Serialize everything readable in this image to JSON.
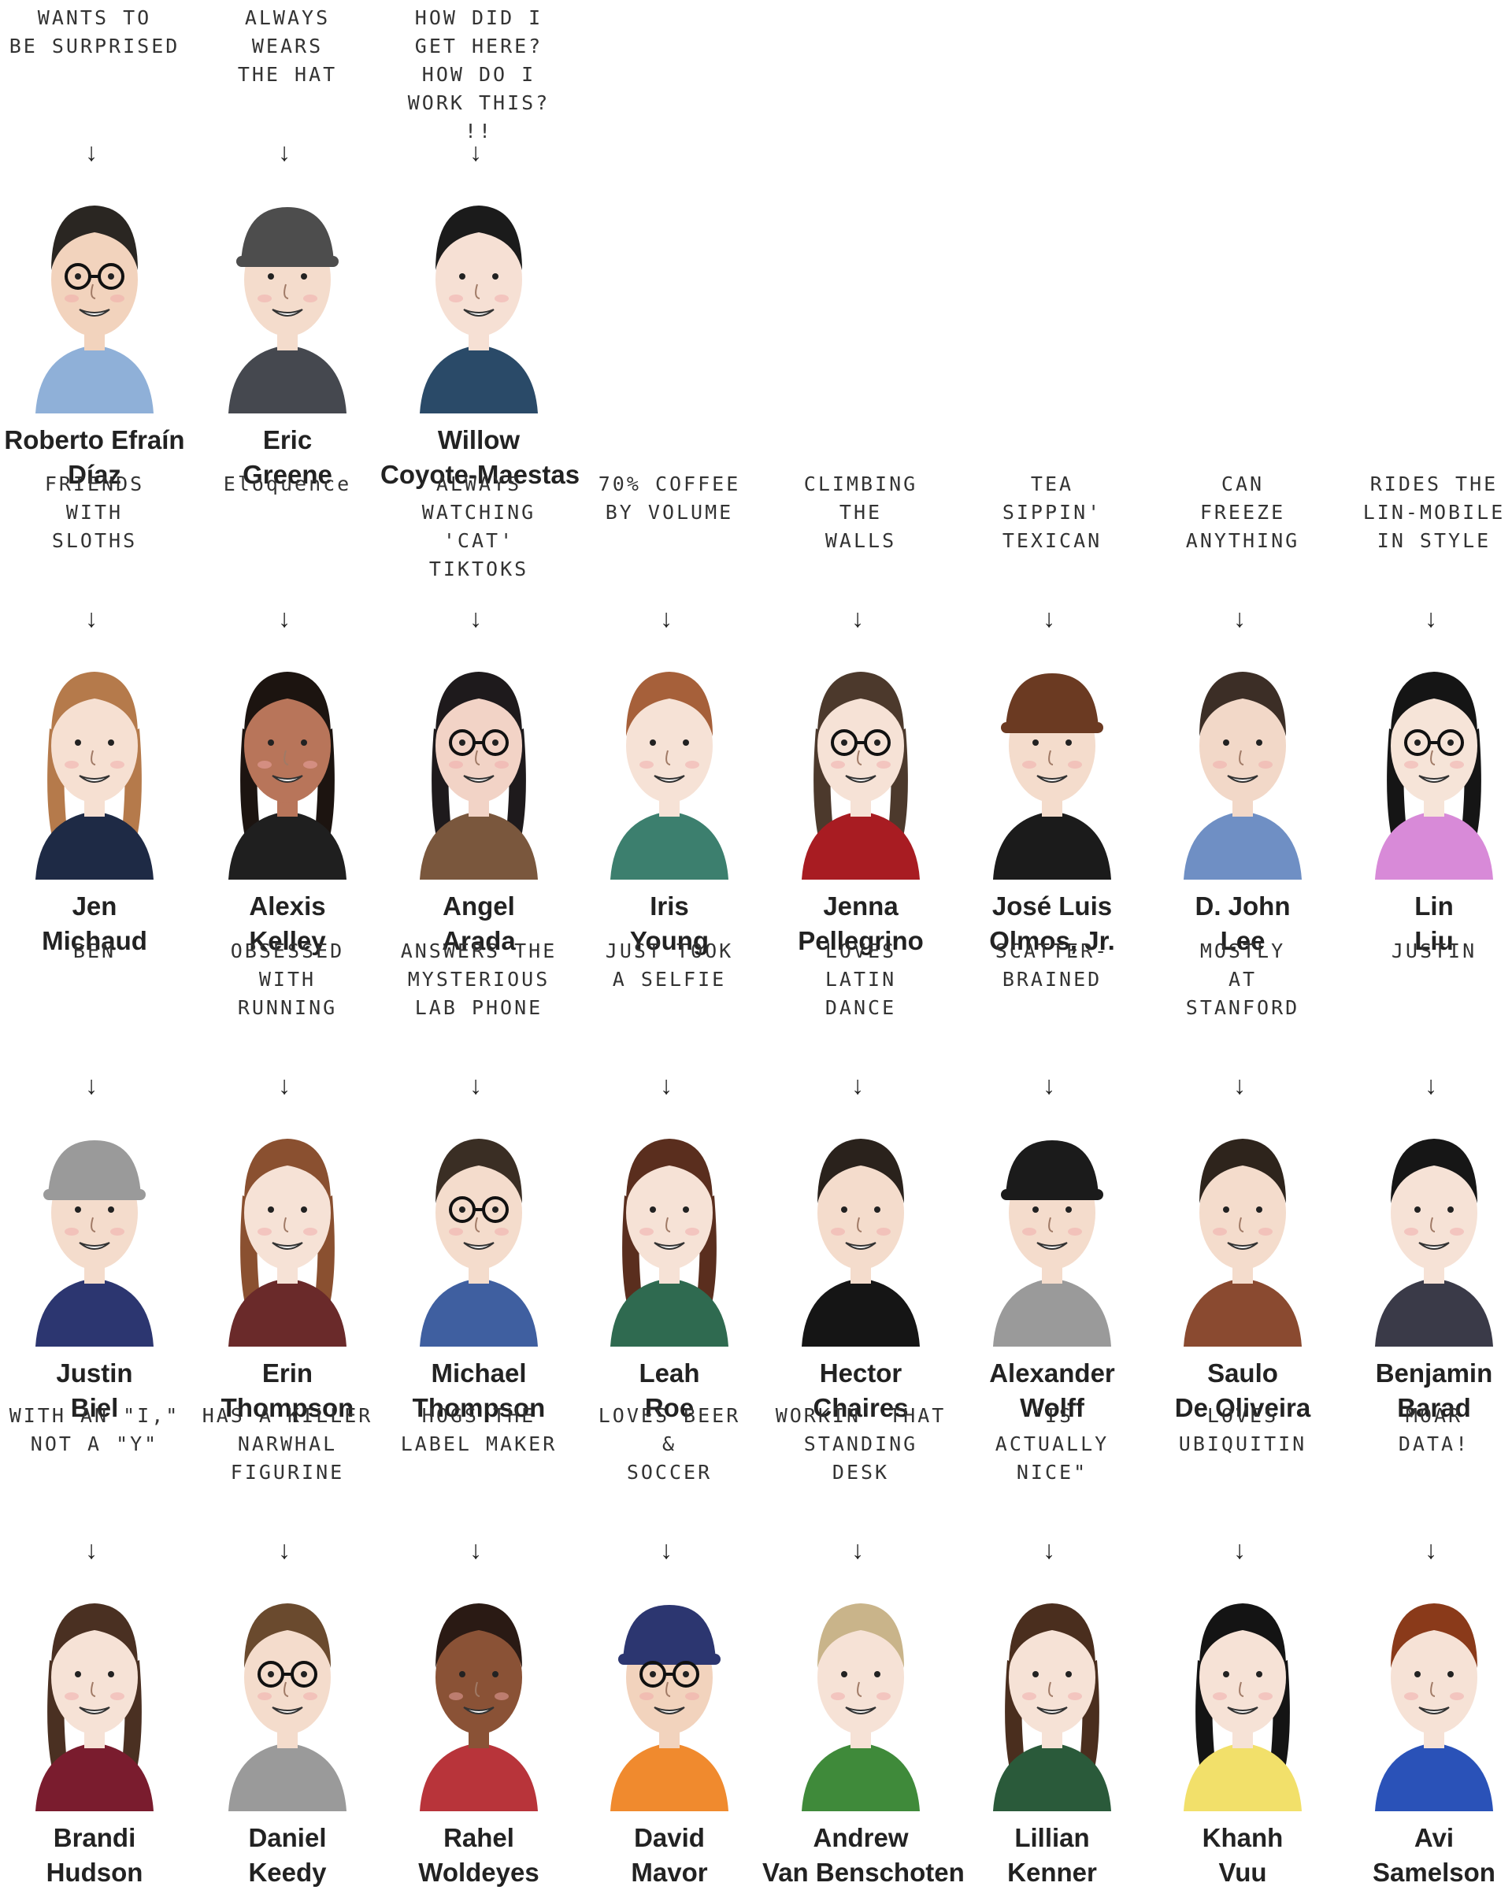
{
  "people": [
    {
      "id": "roberto",
      "note": "WANTS TO\nBE SURPRISED",
      "name1": "Roberto Efraín",
      "name2": "Díaz",
      "hair": "#2a2622",
      "skin": "#f2d3bd",
      "shirt": "#8fb0d8",
      "hat": "",
      "glasses": true
    },
    {
      "id": "eric",
      "note": "ALWAYS\nWEARS\nTHE HAT",
      "name1": "Eric",
      "name2": "Greene",
      "hair": "#3f3f3f",
      "skin": "#f4dccc",
      "shirt": "#45484f",
      "hat": "#4d4d4d",
      "glasses": false
    },
    {
      "id": "willow",
      "note": "HOW DID I GET HERE?\nHOW DO I WORK THIS?\n!!",
      "name1": "Willow",
      "name2": "Coyote-Maestas",
      "hair": "#1b1b1b",
      "skin": "#f6e0d4",
      "shirt": "#2a4a68",
      "hat": "",
      "glasses": false
    },
    {
      "id": "jen",
      "note": "FRIENDS\nWITH\nSLOTHS",
      "name1": "Jen",
      "name2": "Michaud",
      "hair": "#b57a4b",
      "skin": "#f6e0d2",
      "shirt": "#1e2a45",
      "hat": "",
      "glasses": false
    },
    {
      "id": "alexis",
      "note": "Eloquence",
      "name1": "Alexis",
      "name2": "Kelley",
      "hair": "#1c1410",
      "skin": "#b8755a",
      "shirt": "#1f1f1f",
      "hat": "",
      "glasses": false
    },
    {
      "id": "angel",
      "note": "ALWAYS\nWATCHING\n'CAT' TIKTOKS",
      "name1": "Angel",
      "name2": "Arada",
      "hair": "#1e1a1c",
      "skin": "#f2d3c6",
      "shirt": "#7a573d",
      "hat": "",
      "glasses": true
    },
    {
      "id": "iris",
      "note": "70% COFFEE\nBY VOLUME",
      "name1": "Iris",
      "name2": "Young",
      "hair": "#a6603a",
      "skin": "#f6e2d6",
      "shirt": "#3c7f6e",
      "hat": "",
      "glasses": false
    },
    {
      "id": "jenna",
      "note": "CLIMBING\nTHE\nWALLS",
      "name1": "Jenna",
      "name2": "Pellegrino",
      "hair": "#4c392c",
      "skin": "#f6e2d6",
      "shirt": "#a81c22",
      "hat": "",
      "glasses": true
    },
    {
      "id": "jose",
      "note": "TEA\nSIPPIN'\nTEXICAN",
      "name1": "José Luis",
      "name2": "Olmos, Jr.",
      "hair": "#1c1c1c",
      "skin": "#f4dccc",
      "shirt": "#1b1b1b",
      "hat": "#6b3a22",
      "glasses": false
    },
    {
      "id": "djohn",
      "note": "CAN\nFREEZE\nANYTHING",
      "name1": "D. John",
      "name2": "Lee",
      "hair": "#3c2e26",
      "skin": "#f2d8c8",
      "shirt": "#6f8fc4",
      "hat": "",
      "glasses": false
    },
    {
      "id": "lin",
      "note": "RIDES THE\nLIN-MOBILE\nIN STYLE",
      "name1": "Lin",
      "name2": "Liu",
      "hair": "#151515",
      "skin": "#f6e4d8",
      "shirt": "#d88ad8",
      "hat": "",
      "glasses": true
    },
    {
      "id": "justin",
      "note": "BEN",
      "name1": "Justin",
      "name2": "Biel",
      "hair": "#2a2a2a",
      "skin": "#f4dccc",
      "shirt": "#2c3670",
      "hat": "#9a9a9a",
      "glasses": false
    },
    {
      "id": "erin",
      "note": "OBSESSED\nWITH\nRUNNING",
      "name1": "Erin",
      "name2": "Thompson",
      "hair": "#8a5030",
      "skin": "#f6e2d6",
      "shirt": "#6a2a2a",
      "hat": "",
      "glasses": false
    },
    {
      "id": "michael",
      "note": "ANSWERS THE\nMYSTERIOUS\nLAB PHONE",
      "name1": "Michael",
      "name2": "Thompson",
      "hair": "#3a2e24",
      "skin": "#f4dccc",
      "shirt": "#3f5fa0",
      "hat": "",
      "glasses": true
    },
    {
      "id": "leah",
      "note": "JUST TOOK\nA SELFIE",
      "name1": "Leah",
      "name2": "Roe",
      "hair": "#5a2e1e",
      "skin": "#f6e2d6",
      "shirt": "#2f6a50",
      "hat": "",
      "glasses": false
    },
    {
      "id": "hector",
      "note": "LOVES\nLATIN\nDANCE",
      "name1": "Hector",
      "name2": "Chaires",
      "hair": "#2a221c",
      "skin": "#f4dccc",
      "shirt": "#151515",
      "hat": "",
      "glasses": false
    },
    {
      "id": "alexander",
      "note": "SCATTER-\nBRAINED",
      "name1": "Alexander",
      "name2": "Wolff",
      "hair": "#1a1a1a",
      "skin": "#f4dccc",
      "shirt": "#9a9a9a",
      "hat": "#1b1b1b",
      "glasses": false
    },
    {
      "id": "saulo",
      "note": "MOSTLY\nAT\nSTANFORD",
      "name1": "Saulo",
      "name2": "De Oliveira",
      "hair": "#2e241c",
      "skin": "#f4dccc",
      "shirt": "#8a4a30",
      "hat": "",
      "glasses": false
    },
    {
      "id": "benjamin",
      "note": "JUSTIN",
      "name1": "Benjamin",
      "name2": "Barad",
      "hair": "#161616",
      "skin": "#f6e2d6",
      "shirt": "#3a3a48",
      "hat": "",
      "glasses": false
    },
    {
      "id": "brandi",
      "note": "WITH AN \"I,\"\nNOT A \"Y\"",
      "name1": "Brandi",
      "name2": "Hudson",
      "hair": "#4a3022",
      "skin": "#f6e2d6",
      "shirt": "#7a1c2e",
      "hat": "",
      "glasses": false
    },
    {
      "id": "daniel",
      "note": "HAS A KILLER\nNARWHAL\nFIGURINE",
      "name1": "Daniel",
      "name2": "Keedy",
      "hair": "#6a4a2e",
      "skin": "#f4dccc",
      "shirt": "#9a9a9a",
      "hat": "",
      "glasses": true
    },
    {
      "id": "rahel",
      "note": "HOGS THE\nLABEL MAKER",
      "name1": "Rahel",
      "name2": "Woldeyes",
      "hair": "#2a1a14",
      "skin": "#8a5236",
      "shirt": "#b8343a",
      "hat": "",
      "glasses": false
    },
    {
      "id": "david",
      "note": "LOVES BEER\n&\nSOCCER",
      "name1": "David",
      "name2": "Mavor",
      "hair": "#caa88a",
      "skin": "#f2d3bd",
      "shirt": "#f08a2e",
      "hat": "#2c3670",
      "glasses": true
    },
    {
      "id": "andrew",
      "note": "WORKIN' THAT\nSTANDING\nDESK",
      "name1": "Andrew",
      "name2": "Van Benschoten",
      "hair": "#c9b48a",
      "skin": "#f6e2d6",
      "shirt": "#3f8a3a",
      "hat": "",
      "glasses": false
    },
    {
      "id": "lillian",
      "note": "\"IS\nACTUALLY\nNICE\"",
      "name1": "Lillian",
      "name2": "Kenner",
      "hair": "#4a2e1e",
      "skin": "#f6e2d6",
      "shirt": "#2a5a3a",
      "hat": "",
      "glasses": false
    },
    {
      "id": "khanh",
      "note": "LOVES\nUBIQUITIN",
      "name1": "Khanh",
      "name2": "Vuu",
      "hair": "#141414",
      "skin": "#f6e2d6",
      "shirt": "#f2e06a",
      "hat": "",
      "glasses": false
    },
    {
      "id": "avi",
      "note": "MOAR\nDATA!",
      "name1": "Avi",
      "name2": "Samelson",
      "hair": "#8a3a1a",
      "skin": "#f6e2d6",
      "shirt": "#2a52b8",
      "hat": "",
      "glasses": false
    }
  ]
}
